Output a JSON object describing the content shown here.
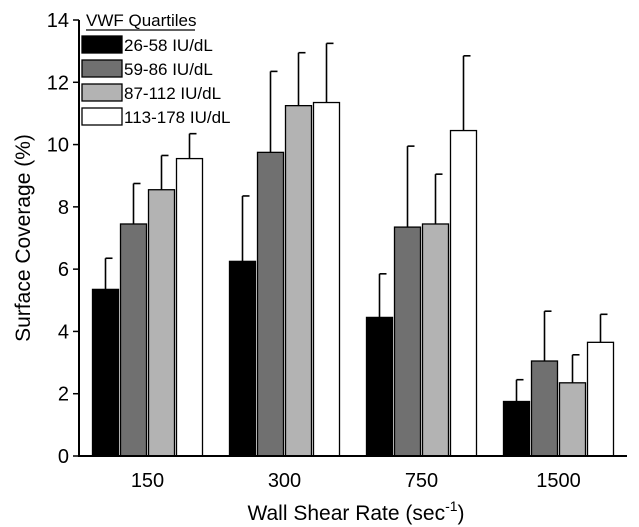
{
  "chart_data": {
    "type": "bar",
    "categories": [
      "150",
      "300",
      "750",
      "1500"
    ],
    "xlabel": "Wall Shear Rate (sec",
    "xlabel_sup": "-1",
    "xlabel_end": ")",
    "ylabel": "Surface Coverage (%)",
    "ylim": [
      0,
      14
    ],
    "yticks": [
      "0",
      "2",
      "4",
      "6",
      "8",
      "10",
      "12",
      "14"
    ],
    "legend_title": "VWF Quartiles",
    "legend_position": "top-left",
    "grid": false,
    "series": [
      {
        "name": "26-58 IU/dL",
        "color": "#000000",
        "values": [
          5.35,
          6.25,
          4.45,
          1.75
        ],
        "errors": [
          1.0,
          2.1,
          1.4,
          0.7
        ]
      },
      {
        "name": "59-86 IU/dL",
        "color": "#707070",
        "values": [
          7.45,
          9.75,
          7.35,
          3.05
        ],
        "errors": [
          1.3,
          2.6,
          2.6,
          1.6
        ]
      },
      {
        "name": "87-112 IU/dL",
        "color": "#b3b3b3",
        "values": [
          8.55,
          11.25,
          7.45,
          2.35
        ],
        "errors": [
          1.1,
          1.7,
          1.6,
          0.9
        ]
      },
      {
        "name": "113-178 IU/dL",
        "color": "#ffffff",
        "values": [
          9.55,
          11.35,
          10.45,
          3.65
        ],
        "errors": [
          0.8,
          1.9,
          2.4,
          0.9
        ]
      }
    ]
  }
}
